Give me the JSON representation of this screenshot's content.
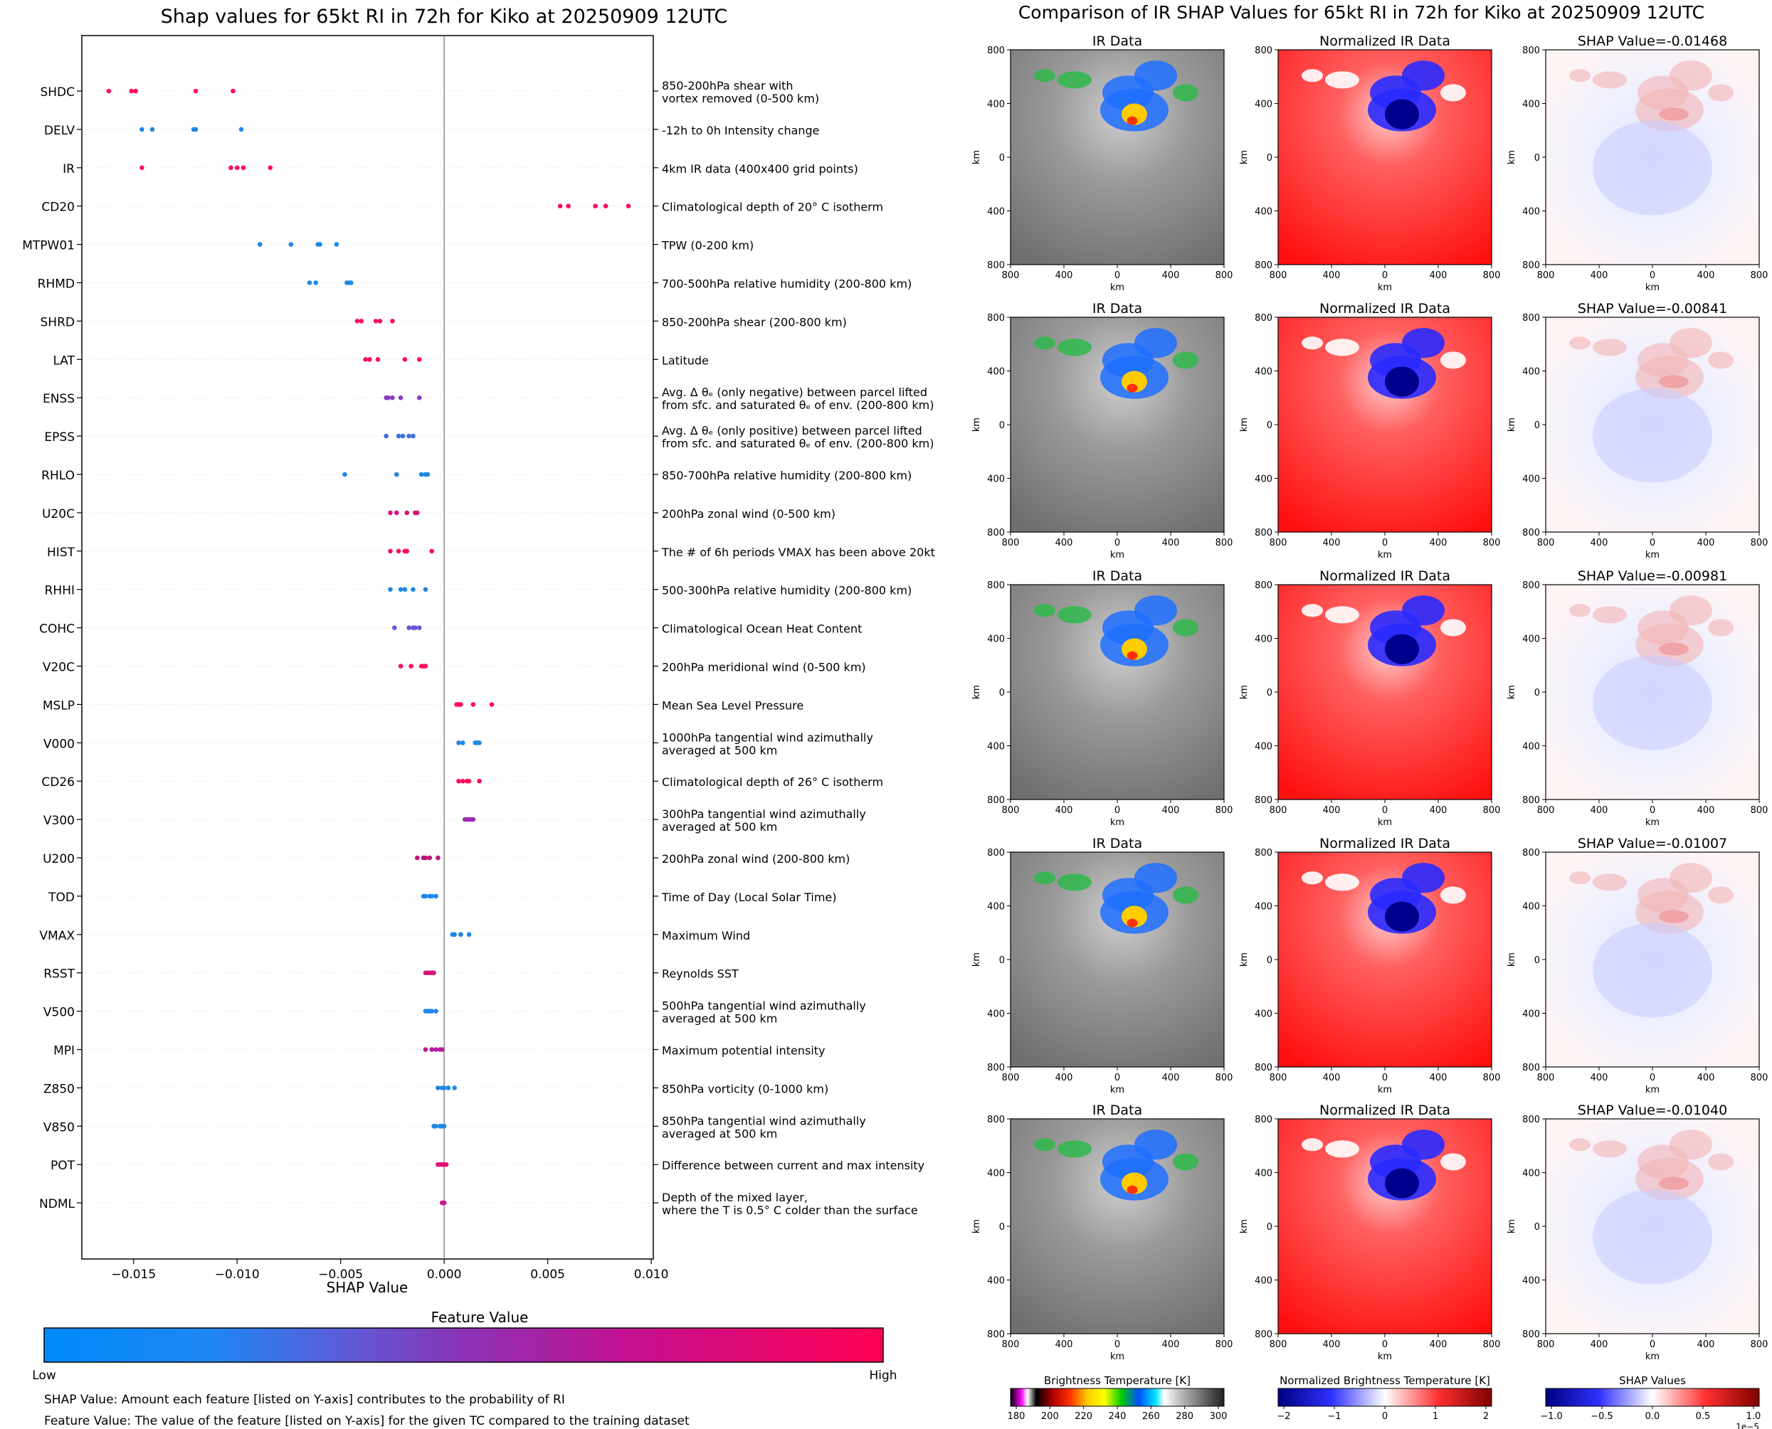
{
  "shap_chart": {
    "title": "Shap values for 65kt RI in 72h for Kiko at 20250909 12UTC",
    "xlabel": "SHAP Value",
    "xlim": [
      -0.0175,
      0.0101
    ],
    "xticks": [
      -0.015,
      -0.01,
      -0.005,
      0.0,
      0.005,
      0.01
    ],
    "xtick_labels": [
      "−0.015",
      "−0.010",
      "−0.005",
      "0.000",
      "0.005",
      "0.010"
    ]
  },
  "chart_data": [
    {
      "type": "scatter",
      "title": "Shap values for 65kt RI in 72h for Kiko at 20250909 12UTC",
      "xlabel": "SHAP Value",
      "xlim": [
        -0.0175,
        0.0101
      ],
      "features": [
        {
          "name": "SHDC",
          "desc": [
            "850-200hPa shear with",
            "vortex removed (0-500 km)"
          ],
          "color": "#ff0d57",
          "values": [
            -0.0162,
            -0.0151,
            -0.0149,
            -0.012,
            -0.0102
          ]
        },
        {
          "name": "DELV",
          "desc": [
            "-12h to 0h Intensity change"
          ],
          "color": "#1e88e5",
          "values": [
            -0.0146,
            -0.0141,
            -0.0121,
            -0.012,
            -0.0098
          ]
        },
        {
          "name": "IR",
          "desc": [
            "4km IR data (400x400 grid points)"
          ],
          "color": "#ff0d57",
          "values": [
            -0.0146,
            -0.0103,
            -0.01,
            -0.0097,
            -0.0084
          ]
        },
        {
          "name": "CD20",
          "desc": [
            "Climatological depth of 20° C isotherm"
          ],
          "color": "#ff0d57",
          "values": [
            0.0056,
            0.006,
            0.0073,
            0.0078,
            0.0089
          ]
        },
        {
          "name": "MTPW01",
          "desc": [
            "TPW (0-200 km)"
          ],
          "color": "#1e88e5",
          "values": [
            -0.0089,
            -0.0074,
            -0.0061,
            -0.006,
            -0.0052
          ]
        },
        {
          "name": "RHMD",
          "desc": [
            "700-500hPa relative humidity (200-800 km)"
          ],
          "color": "#1e88e5",
          "values": [
            -0.0065,
            -0.0062,
            -0.0047,
            -0.0046,
            -0.0045
          ]
        },
        {
          "name": "SHRD",
          "desc": [
            "850-200hPa shear (200-800 km)"
          ],
          "color": "#ff0d57",
          "values": [
            -0.0042,
            -0.004,
            -0.0033,
            -0.0031,
            -0.0025
          ]
        },
        {
          "name": "LAT",
          "desc": [
            "Latitude"
          ],
          "color": "#ff0d57",
          "values": [
            -0.0038,
            -0.0036,
            -0.0032,
            -0.0019,
            -0.0012
          ]
        },
        {
          "name": "ENSS",
          "desc": [
            "Avg. Δ θₑ (only negative) between parcel lifted",
            "from sfc. and saturated θₑ of env. (200-800 km)"
          ],
          "color": "#8a3cc2",
          "values": [
            -0.0028,
            -0.0027,
            -0.0025,
            -0.0021,
            -0.0012
          ]
        },
        {
          "name": "EPSS",
          "desc": [
            "Avg. Δ θₑ (only positive) between parcel lifted",
            "from sfc. and saturated θₑ of env. (200-800 km)"
          ],
          "color": "#3f6fe0",
          "values": [
            -0.0028,
            -0.0022,
            -0.002,
            -0.0017,
            -0.0015
          ]
        },
        {
          "name": "RHLO",
          "desc": [
            "850-700hPa relative humidity (200-800 km)"
          ],
          "color": "#1e88e5",
          "values": [
            -0.0048,
            -0.0023,
            -0.0011,
            -0.0009,
            -0.0008
          ]
        },
        {
          "name": "U20C",
          "desc": [
            "200hPa zonal wind (0-500 km)"
          ],
          "color": "#d6137a",
          "values": [
            -0.0026,
            -0.0023,
            -0.0018,
            -0.0014,
            -0.0013
          ]
        },
        {
          "name": "HIST",
          "desc": [
            "The # of 6h periods VMAX has been above 20kt"
          ],
          "color": "#ff0d57",
          "values": [
            -0.0026,
            -0.0022,
            -0.0019,
            -0.0018,
            -0.0006
          ]
        },
        {
          "name": "RHHI",
          "desc": [
            "500-300hPa relative humidity (200-800 km)"
          ],
          "color": "#1e88e5",
          "values": [
            -0.0026,
            -0.0021,
            -0.0019,
            -0.0015,
            -0.0009
          ]
        },
        {
          "name": "COHC",
          "desc": [
            "Climatological Ocean Heat Content"
          ],
          "color": "#6a55d8",
          "values": [
            -0.0024,
            -0.0017,
            -0.0015,
            -0.0014,
            -0.0012
          ]
        },
        {
          "name": "V20C",
          "desc": [
            "200hPa meridional wind (0-500 km)"
          ],
          "color": "#ff0d57",
          "values": [
            -0.0021,
            -0.0016,
            -0.0011,
            -0.001,
            -0.0009
          ]
        },
        {
          "name": "MSLP",
          "desc": [
            "Mean Sea Level Pressure"
          ],
          "color": "#ff0d57",
          "values": [
            0.0006,
            0.0007,
            0.0008,
            0.0014,
            0.0023
          ]
        },
        {
          "name": "V000",
          "desc": [
            "1000hPa tangential wind azimuthally",
            "averaged at 500 km"
          ],
          "color": "#1e88e5",
          "values": [
            0.0007,
            0.0009,
            0.0015,
            0.0016,
            0.0017
          ]
        },
        {
          "name": "CD26",
          "desc": [
            "Climatological depth of 26° C isotherm"
          ],
          "color": "#ff0d57",
          "values": [
            0.0007,
            0.0009,
            0.0011,
            0.0012,
            0.0017
          ]
        },
        {
          "name": "V300",
          "desc": [
            "300hPa tangential wind azimuthally",
            "averaged at 500 km"
          ],
          "color": "#9a2fb0",
          "values": [
            0.001,
            0.0011,
            0.0012,
            0.0013,
            0.0014
          ]
        },
        {
          "name": "U200",
          "desc": [
            "200hPa zonal wind (200-800 km)"
          ],
          "color": "#c0147f",
          "values": [
            -0.0013,
            -0.001,
            -0.0009,
            -0.0007,
            -0.0003
          ]
        },
        {
          "name": "TOD",
          "desc": [
            "Time of Day (Local Solar Time)"
          ],
          "color": "#1e88e5",
          "values": [
            -0.001,
            -0.0009,
            -0.0007,
            -0.0006,
            -0.0004
          ]
        },
        {
          "name": "VMAX",
          "desc": [
            "Maximum Wind"
          ],
          "color": "#1e88e5",
          "values": [
            0.0004,
            0.0005,
            0.0008,
            0.0008,
            0.0012
          ]
        },
        {
          "name": "RSST",
          "desc": [
            "Reynolds SST"
          ],
          "color": "#d6137a",
          "values": [
            -0.0009,
            -0.0008,
            -0.0007,
            -0.0006,
            -0.0005
          ]
        },
        {
          "name": "V500",
          "desc": [
            "500hPa tangential wind azimuthally",
            "averaged at 500 km"
          ],
          "color": "#1e88e5",
          "values": [
            -0.0009,
            -0.0008,
            -0.0007,
            -0.0006,
            -0.0004
          ]
        },
        {
          "name": "MPI",
          "desc": [
            "Maximum potential intensity"
          ],
          "color": "#b41d9c",
          "values": [
            -0.0009,
            -0.0006,
            -0.0004,
            -0.0002,
            -0.0001
          ]
        },
        {
          "name": "Z850",
          "desc": [
            "850hPa vorticity (0-1000 km)"
          ],
          "color": "#1e88e5",
          "values": [
            -0.0003,
            -0.0001,
            0.0,
            0.0002,
            0.0005
          ]
        },
        {
          "name": "V850",
          "desc": [
            "850hPa tangential wind azimuthally",
            "averaged at 500 km"
          ],
          "color": "#1e88e5",
          "values": [
            -0.0005,
            -0.0004,
            -0.0002,
            -0.0001,
            0.0
          ]
        },
        {
          "name": "POT",
          "desc": [
            "Difference between current and max intensity"
          ],
          "color": "#e01075",
          "values": [
            -0.0003,
            -0.0002,
            -0.0001,
            0.0,
            0.0001
          ]
        },
        {
          "name": "NDML",
          "desc": [
            "Depth of the mixed layer,",
            "where the T is 0.5° C colder than the surface"
          ],
          "color": "#c11a8a",
          "values": [
            -0.0001,
            0.0,
            0.0
          ]
        }
      ]
    },
    {
      "type": "heatmap",
      "title": "Comparison of IR SHAP Values for 65kt RI in 72h for Kiko at 20250909 12UTC",
      "column_titles": [
        "IR Data",
        "Normalized IR Data"
      ],
      "shap_titles": [
        "SHAP Value=-0.01468",
        "SHAP Value=-0.00841",
        "SHAP Value=-0.00981",
        "SHAP Value=-0.01007",
        "SHAP Value=-0.01040"
      ],
      "axis_unit": "km",
      "axis_ticks": [
        "800",
        "400",
        "0",
        "400",
        "800"
      ]
    }
  ],
  "colorbar": {
    "title": "Feature Value",
    "low": "Low",
    "high": "High"
  },
  "notes": [
    "SHAP Value: Amount each feature [listed on Y-axis] contributes to the probability of RI",
    "Feature Value: The value of the feature [listed on Y-axis] for the given TC compared to the training dataset"
  ],
  "right_panel": {
    "title": "Comparison of IR SHAP Values for 65kt RI in 72h for Kiko at 20250909 12UTC",
    "ir_title": "IR Data",
    "norm_title": "Normalized IR Data",
    "axis_label": "km"
  },
  "colorbars": [
    {
      "title": "Brightness Temperature [K]",
      "ticks": [
        "180",
        "200",
        "220",
        "240",
        "260",
        "280",
        "300"
      ]
    },
    {
      "title": "Normalized Brightness Temperature [K]",
      "ticks": [
        "−2",
        "−1",
        "0",
        "1",
        "2"
      ]
    },
    {
      "title": "SHAP Values",
      "ticks": [
        "−1.0",
        "−0.5",
        "0.0",
        "0.5",
        "1.0"
      ],
      "offset": "1e−5"
    }
  ]
}
